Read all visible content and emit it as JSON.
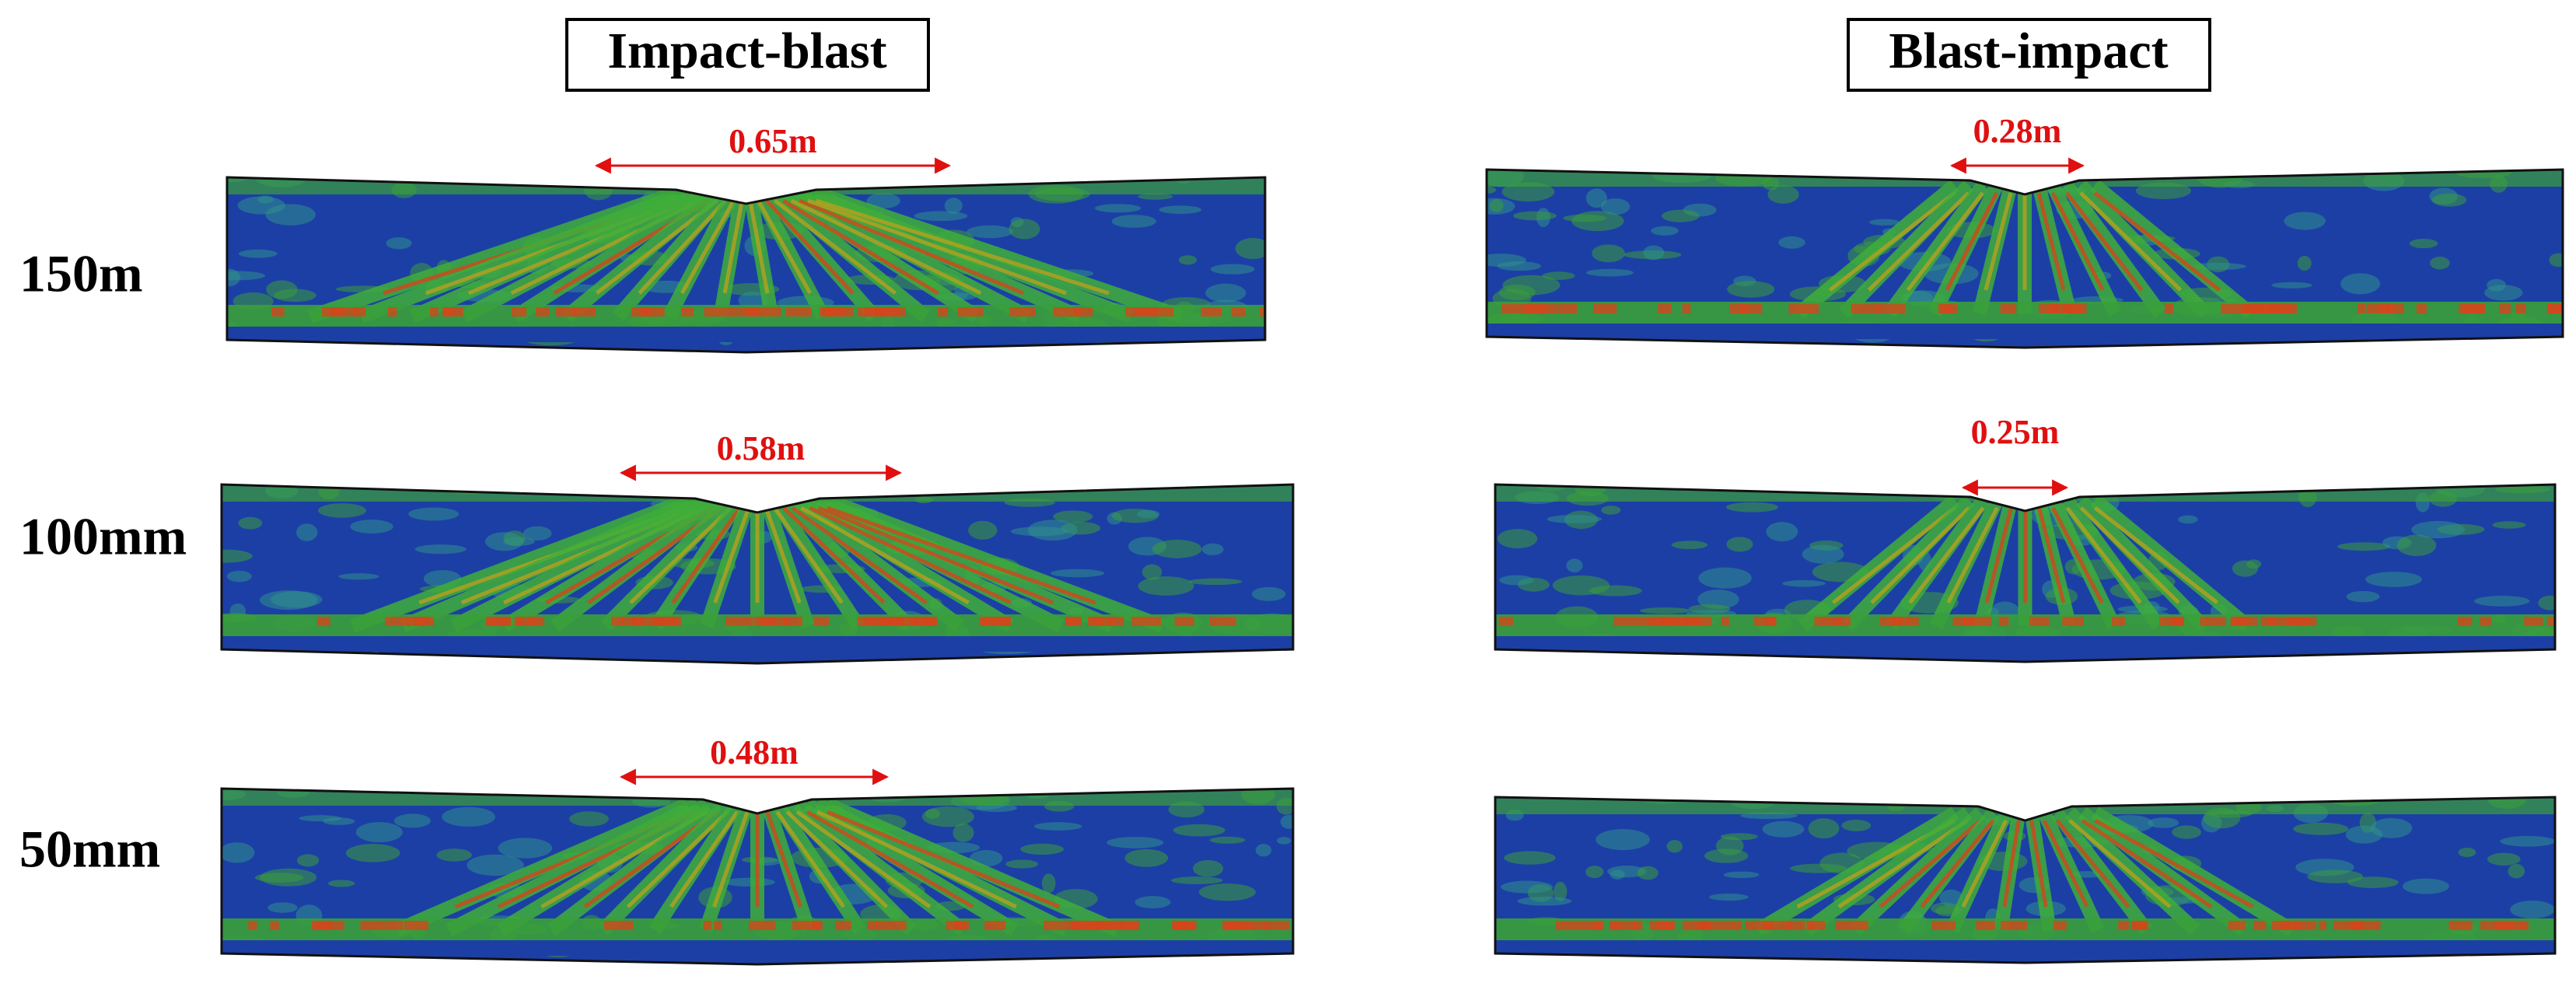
{
  "columns": [
    "Impact-blast",
    "Blast-impact"
  ],
  "rows": [
    {
      "label": "150m",
      "impact_blast_span": "0.65m",
      "blast_impact_span": "0.28m"
    },
    {
      "label": "100mm",
      "impact_blast_span": "0.58m",
      "blast_impact_span": "0.25m"
    },
    {
      "label": "50mm",
      "impact_blast_span": "0.48m"
    }
  ]
}
